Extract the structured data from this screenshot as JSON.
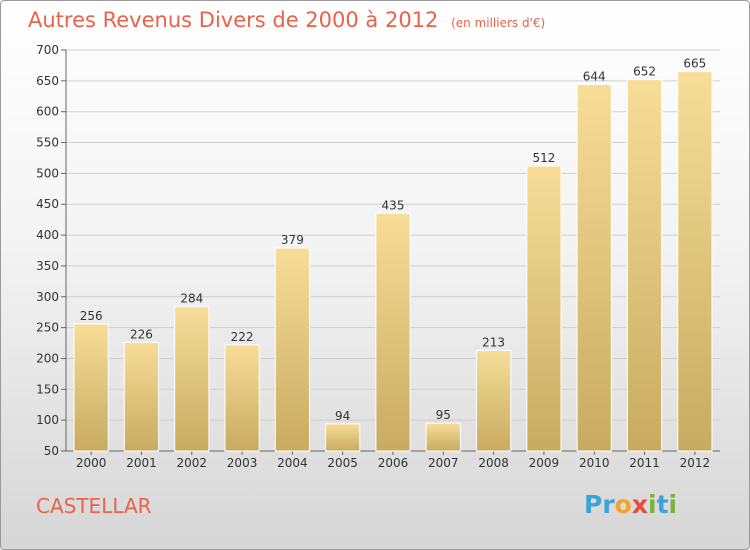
{
  "header": {
    "title": "Autres Revenus Divers de 2000 à 2012",
    "unit": "(en milliers d'€)"
  },
  "footer": {
    "city": "CASTELLAR",
    "logo": {
      "letters": [
        "P",
        "r",
        "o",
        "x",
        "i",
        "t",
        "i"
      ],
      "colors": [
        "#3aa3d8",
        "#3aa3d8",
        "#f0a52a",
        "#e84b3c",
        "#78b43c",
        "#3aa3d8",
        "#78b43c"
      ]
    }
  },
  "chart_data": {
    "type": "bar",
    "title": "Autres Revenus Divers de 2000 à 2012",
    "ylabel": "(en milliers d'€)",
    "categories": [
      "2000",
      "2001",
      "2002",
      "2003",
      "2004",
      "2005",
      "2006",
      "2007",
      "2008",
      "2009",
      "2010",
      "2011",
      "2012"
    ],
    "values": [
      256,
      226,
      284,
      222,
      379,
      94,
      435,
      95,
      213,
      512,
      644,
      652,
      665
    ],
    "ylim": [
      50,
      700
    ],
    "yticks": [
      50,
      100,
      150,
      200,
      250,
      300,
      350,
      400,
      450,
      500,
      550,
      600,
      650,
      700
    ],
    "grid": true,
    "colors": {
      "bar_top": "#f7dd98",
      "bar_bottom": "#c8ab60",
      "label": "#333333",
      "grid": "#cfcfcf"
    }
  }
}
